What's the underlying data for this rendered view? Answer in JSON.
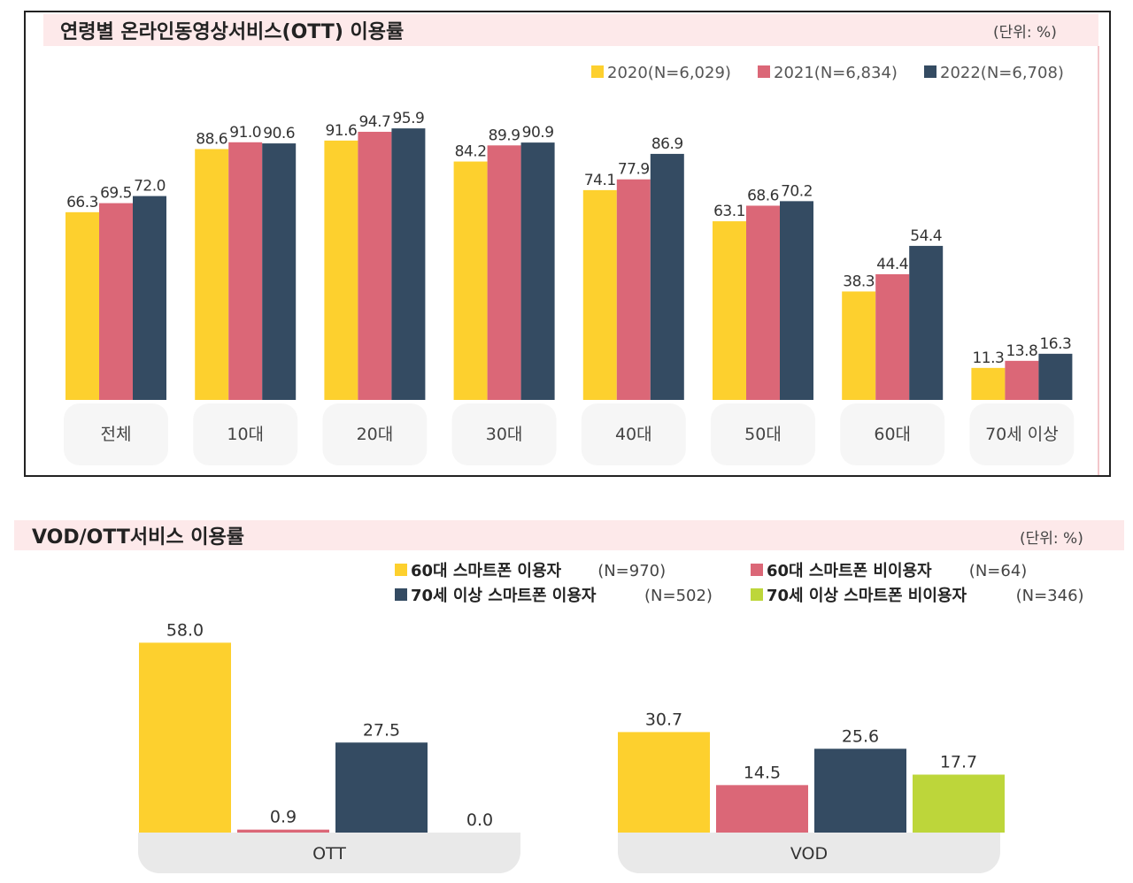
{
  "chart_data": [
    {
      "type": "bar",
      "title": "연령별 온라인동영상서비스(OTT) 이용률",
      "unit": "(단위: %)",
      "categories": [
        "전체",
        "10대",
        "20대",
        "30대",
        "40대",
        "50대",
        "60대",
        "70세 이상"
      ],
      "series": [
        {
          "name": "2020(N=6,029)",
          "color": "#fdd02e",
          "values": [
            66.3,
            88.6,
            91.6,
            84.2,
            74.1,
            63.1,
            38.3,
            11.3
          ],
          "labels": [
            "66.3",
            "88.6",
            "91.6",
            "84.2",
            "74.1",
            "63.1",
            "38.3",
            "11.3"
          ]
        },
        {
          "name": "2021(N=6,834)",
          "color": "#db6777",
          "values": [
            69.5,
            91.0,
            94.7,
            89.9,
            77.9,
            68.6,
            44.4,
            13.8
          ],
          "labels": [
            "69.5",
            "91.0",
            "94.7",
            "89.9",
            "77.9",
            "68.6",
            "44.4",
            "13.8"
          ]
        },
        {
          "name": "2022(N=6,708)",
          "color": "#344b62",
          "values": [
            72.0,
            90.6,
            95.9,
            90.9,
            86.9,
            70.2,
            54.4,
            16.3
          ],
          "labels": [
            "72.0",
            "90.6",
            "95.9",
            "90.9",
            "86.9",
            "70.2",
            "54.4",
            "16.3"
          ]
        }
      ],
      "ylim": [
        0,
        100
      ],
      "grid": false,
      "legend": "top-right"
    },
    {
      "type": "bar",
      "title": "VOD/OTT서비스 이용률",
      "unit": "(단위: %)",
      "categories": [
        "OTT",
        "VOD"
      ],
      "series": [
        {
          "name": "60대 스마트폰 이용자",
          "n": "(N=970)",
          "color": "#fdd02e",
          "values": [
            58.0,
            30.7
          ],
          "labels": [
            "58.0",
            "30.7"
          ]
        },
        {
          "name": "60대 스마트폰 비이용자",
          "n": "(N=64)",
          "color": "#db6777",
          "values": [
            0.9,
            14.5
          ],
          "labels": [
            "0.9",
            "14.5"
          ]
        },
        {
          "name": "70세 이상 스마트폰 이용자",
          "n": "(N=502)",
          "color": "#344b62",
          "values": [
            27.5,
            25.6
          ],
          "labels": [
            "27.5",
            "25.6"
          ]
        },
        {
          "name": "70세 이상 스마트폰 비이용자",
          "n": "(N=346)",
          "color": "#bdd63a",
          "values": [
            0.0,
            17.7
          ],
          "labels": [
            "0.0",
            "17.7"
          ]
        }
      ],
      "ylim": [
        0,
        58
      ],
      "grid": false,
      "legend": "top-right"
    }
  ]
}
